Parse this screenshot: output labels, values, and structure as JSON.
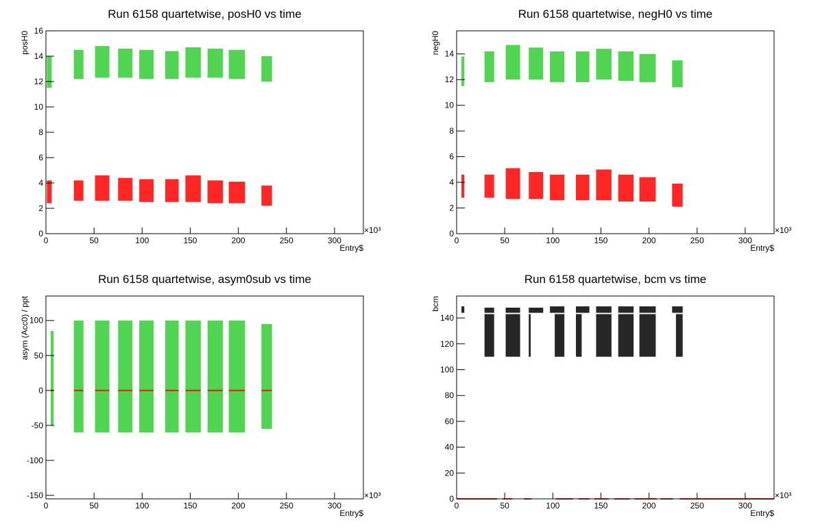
{
  "chart_data": [
    {
      "type": "band",
      "title": "Run 6158 quartetwise, posH0 vs time",
      "x_label": "Entry$",
      "x_exponent": "×10³",
      "y_label": "posH0",
      "xlim": [
        0,
        330
      ],
      "xticks": [
        0,
        50,
        100,
        150,
        200,
        250,
        300
      ],
      "ylim": [
        0,
        16
      ],
      "yticks": [
        0,
        2,
        4,
        6,
        8,
        10,
        12,
        14,
        16
      ],
      "series": [
        {
          "color": "#33cc33",
          "x": [
            1,
            29,
            51,
            75,
            97,
            124,
            145,
            168,
            190,
            224
          ],
          "x_end": [
            6,
            39,
            66,
            90,
            112,
            138,
            161,
            184,
            207,
            235
          ],
          "low": [
            11.5,
            12.2,
            12.3,
            12.3,
            12.2,
            12.2,
            12.3,
            12.3,
            12.2,
            12
          ],
          "high": [
            14,
            14.5,
            14.8,
            14.6,
            14.5,
            14.4,
            14.7,
            14.6,
            14.5,
            14
          ]
        },
        {
          "color": "#ff0000",
          "x": [
            1,
            29,
            51,
            75,
            97,
            124,
            145,
            168,
            190,
            224
          ],
          "x_end": [
            6,
            39,
            66,
            90,
            112,
            138,
            161,
            184,
            207,
            235
          ],
          "low": [
            2.4,
            2.6,
            2.6,
            2.6,
            2.5,
            2.5,
            2.5,
            2.4,
            2.4,
            2.2
          ],
          "high": [
            4.2,
            4.2,
            4.6,
            4.4,
            4.3,
            4.3,
            4.6,
            4.2,
            4.1,
            3.8
          ]
        }
      ]
    },
    {
      "type": "band",
      "title": "Run 6158 quartetwise, negH0 vs time",
      "x_label": "Entry$",
      "x_exponent": "×10³",
      "y_label": "negH0",
      "xlim": [
        0,
        330
      ],
      "xticks": [
        0,
        50,
        100,
        150,
        200,
        250,
        300
      ],
      "ylim": [
        0,
        15.8
      ],
      "yticks": [
        0,
        2,
        4,
        6,
        8,
        10,
        12,
        14
      ],
      "series": [
        {
          "color": "#33cc33",
          "x": [
            5,
            29,
            51,
            75,
            97,
            124,
            145,
            168,
            190,
            224
          ],
          "x_end": [
            8,
            39,
            66,
            90,
            112,
            138,
            161,
            184,
            207,
            235
          ],
          "low": [
            11.5,
            11.8,
            12,
            12,
            11.8,
            11.8,
            12,
            11.9,
            11.8,
            11.4
          ],
          "high": [
            13.8,
            14.2,
            14.7,
            14.5,
            14.2,
            14.2,
            14.4,
            14.2,
            14,
            13.5
          ]
        },
        {
          "color": "#ff0000",
          "x": [
            5,
            29,
            51,
            75,
            97,
            124,
            145,
            168,
            190,
            224
          ],
          "x_end": [
            8,
            39,
            66,
            90,
            112,
            138,
            161,
            184,
            207,
            235
          ],
          "low": [
            2.8,
            2.8,
            2.7,
            2.7,
            2.6,
            2.6,
            2.6,
            2.5,
            2.5,
            2.1
          ],
          "high": [
            4.6,
            4.6,
            5.1,
            4.8,
            4.6,
            4.6,
            5,
            4.6,
            4.4,
            3.9
          ]
        }
      ]
    },
    {
      "type": "band",
      "title": "Run 6158 quartetwise, asym0sub vs time",
      "x_label": "Entry$",
      "x_exponent": "×10³",
      "y_label": "asym (Acc0) / ppt",
      "xlim": [
        0,
        330
      ],
      "xticks": [
        0,
        50,
        100,
        150,
        200,
        250,
        300
      ],
      "ylim": [
        -155,
        135
      ],
      "yticks": [
        -150,
        -100,
        -50,
        0,
        50,
        100
      ],
      "series": [
        {
          "color": "#33cc33",
          "x": [
            5,
            29,
            51,
            75,
            97,
            124,
            145,
            168,
            190,
            224
          ],
          "x_end": [
            8,
            39,
            66,
            90,
            112,
            138,
            161,
            184,
            207,
            235
          ],
          "low": [
            -50,
            -60,
            -60,
            -60,
            -60,
            -60,
            -60,
            -60,
            -60,
            -55
          ],
          "high": [
            85,
            100,
            100,
            100,
            100,
            100,
            100,
            100,
            100,
            95
          ]
        },
        {
          "color": "#ff0000",
          "x": [
            5,
            29,
            51,
            75,
            97,
            124,
            145,
            168,
            190,
            224
          ],
          "x_end": [
            8,
            39,
            66,
            90,
            112,
            138,
            161,
            184,
            207,
            235
          ],
          "low": [
            0,
            0,
            0,
            0,
            0,
            0,
            0,
            0,
            0,
            0
          ],
          "high": [
            0,
            0,
            0,
            0,
            0,
            0,
            0,
            0,
            0,
            0
          ]
        }
      ]
    },
    {
      "type": "band",
      "title": "Run 6158 quartetwise, bcm vs time",
      "x_label": "Entry$",
      "x_exponent": "×10³",
      "y_label": "bcm",
      "xlim": [
        0,
        330
      ],
      "xticks": [
        0,
        50,
        100,
        150,
        200,
        250,
        300
      ],
      "ylim": [
        0,
        157
      ],
      "yticks": [
        0,
        20,
        40,
        60,
        80,
        100,
        120,
        140
      ],
      "series": [
        {
          "color": "#000000",
          "x": [
            5,
            29,
            51,
            75,
            97,
            124,
            145,
            168,
            190,
            224
          ],
          "x_end": [
            8,
            39,
            66,
            90,
            112,
            138,
            161,
            184,
            207,
            235
          ],
          "low": [
            144,
            144,
            144,
            144,
            144,
            144,
            144,
            144,
            144,
            144
          ],
          "high": [
            149,
            148,
            148,
            148,
            149,
            149,
            149,
            149,
            149,
            149
          ]
        },
        {
          "color": "#000000",
          "x": [
            29,
            51,
            75,
            102,
            124,
            145,
            168,
            190,
            228
          ],
          "x_end": [
            39,
            66,
            77,
            112,
            130,
            161,
            184,
            207,
            235
          ],
          "low": [
            110,
            110,
            110,
            110,
            110,
            110,
            110,
            110,
            110
          ],
          "high": [
            143,
            143,
            143,
            143,
            143,
            143,
            143,
            143,
            143
          ]
        },
        {
          "color": "#ff0000",
          "x": [
            0,
            48,
            70,
            103,
            127,
            143,
            164,
            185,
            212,
            232
          ],
          "x_end": [
            42,
            58,
            78,
            121,
            138,
            158,
            180,
            208,
            225,
            330
          ],
          "low": [
            0,
            0,
            0,
            0,
            0,
            0,
            0,
            0,
            0,
            0
          ],
          "high": [
            0,
            0,
            0,
            0,
            0,
            0,
            0,
            0,
            0,
            0
          ]
        }
      ]
    }
  ]
}
